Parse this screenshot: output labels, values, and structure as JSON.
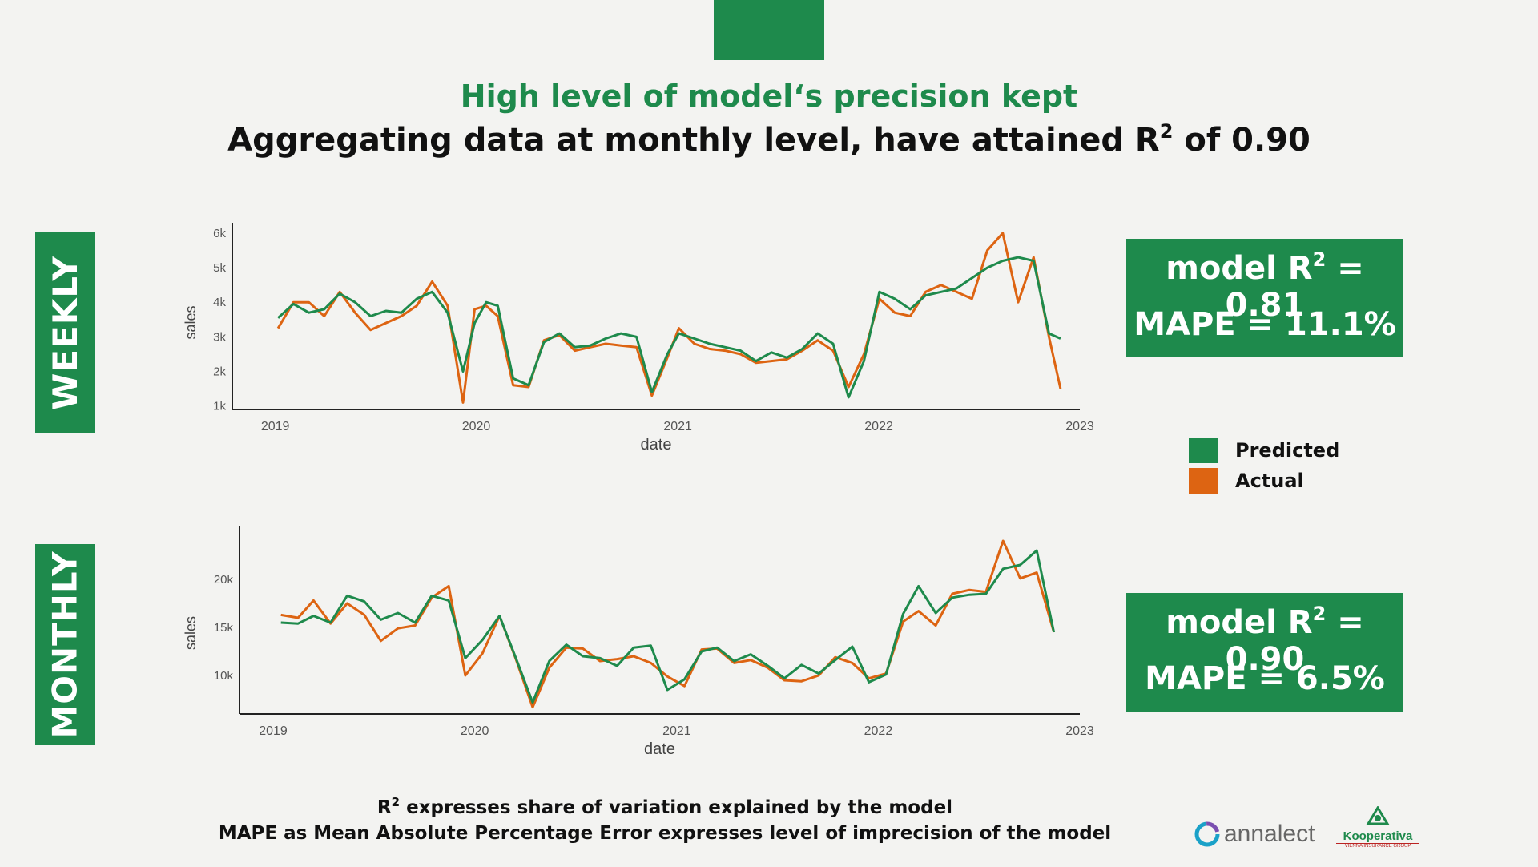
{
  "header": {
    "headline": "High level of model‘s precision kept",
    "subtitle_pre": "Aggregating data at monthly level, have attained R",
    "subtitle_sup": "2",
    "subtitle_post": " of 0.90"
  },
  "side_labels": {
    "weekly": "WEEKLY",
    "monthly": "MONTHLY"
  },
  "metrics": {
    "weekly": {
      "r2_pre": "model R",
      "r2_sup": "2",
      "r2_post": " = 0.81",
      "mape": "MAPE = 11.1%"
    },
    "monthly": {
      "r2_pre": "model R",
      "r2_sup": "2",
      "r2_post": " = 0.90",
      "mape": "MAPE = 6.5%"
    }
  },
  "legend": {
    "predicted": "Predicted",
    "actual": "Actual"
  },
  "colors": {
    "predicted": "#1e8a4c",
    "actual": "#dd6412",
    "brand_green": "#1e8a4c"
  },
  "footnotes": {
    "line1_pre": "R",
    "line1_sup": "2",
    "line1_post": " expresses share of variation explained by the model",
    "line2": "MAPE as Mean Absolute Percentage Error expresses level of imprecision of the model"
  },
  "logos": {
    "annalect": "annalect",
    "kooperativa": "Kooperativa",
    "kooperativa_sub": "VIENNA INSURANCE GROUP"
  },
  "chart_data": [
    {
      "type": "line",
      "title": "",
      "xlabel": "date",
      "ylabel": "sales",
      "xlim": [
        "2018-10-15",
        "2023-01-01"
      ],
      "ylim": [
        900,
        6300
      ],
      "x_ticks": [
        "2019",
        "2020",
        "2021",
        "2022",
        "2023"
      ],
      "y_ticks": [
        "1k",
        "2k",
        "3k",
        "4k",
        "5k",
        "6k"
      ],
      "y_tick_values": [
        1000,
        2000,
        3000,
        4000,
        5000,
        6000
      ],
      "x": [
        "2019-01-06",
        "2019-02-03",
        "2019-03-03",
        "2019-03-31",
        "2019-04-28",
        "2019-05-26",
        "2019-06-23",
        "2019-07-21",
        "2019-08-18",
        "2019-09-15",
        "2019-10-13",
        "2019-11-10",
        "2019-12-08",
        "2019-12-29",
        "2020-01-19",
        "2020-02-09",
        "2020-03-08",
        "2020-04-05",
        "2020-05-03",
        "2020-05-31",
        "2020-06-28",
        "2020-07-26",
        "2020-08-23",
        "2020-09-20",
        "2020-10-18",
        "2020-11-15",
        "2020-12-13",
        "2021-01-03",
        "2021-01-31",
        "2021-02-28",
        "2021-03-28",
        "2021-04-25",
        "2021-05-23",
        "2021-06-20",
        "2021-07-18",
        "2021-08-15",
        "2021-09-12",
        "2021-10-10",
        "2021-11-07",
        "2021-12-05",
        "2022-01-02",
        "2022-01-30",
        "2022-02-27",
        "2022-03-27",
        "2022-04-24",
        "2022-05-22",
        "2022-06-19",
        "2022-07-17",
        "2022-08-14",
        "2022-09-11",
        "2022-10-09",
        "2022-11-06",
        "2022-11-27"
      ],
      "series": [
        {
          "name": "Predicted",
          "values": [
            3550,
            3950,
            3700,
            3800,
            4250,
            4000,
            3600,
            3750,
            3700,
            4100,
            4300,
            3700,
            2000,
            3400,
            4000,
            3900,
            1800,
            1600,
            2850,
            3100,
            2700,
            2750,
            2950,
            3100,
            3000,
            1400,
            2500,
            3100,
            2950,
            2800,
            2700,
            2600,
            2300,
            2550,
            2400,
            2650,
            3100,
            2800,
            1250,
            2300,
            4300,
            4100,
            3800,
            4200,
            4300,
            4400,
            4700,
            5000,
            5200,
            5300,
            5200,
            3100,
            2950
          ]
        },
        {
          "name": "Actual",
          "values": [
            3250,
            4000,
            4000,
            3600,
            4300,
            3700,
            3200,
            3400,
            3600,
            3900,
            4600,
            3900,
            1100,
            3800,
            3900,
            3600,
            1600,
            1550,
            2900,
            3050,
            2600,
            2700,
            2800,
            2750,
            2700,
            1300,
            2400,
            3250,
            2800,
            2650,
            2600,
            2500,
            2250,
            2300,
            2350,
            2600,
            2900,
            2600,
            1550,
            2500,
            4100,
            3700,
            3600,
            4300,
            4500,
            4300,
            4100,
            5500,
            6000,
            4000,
            5300,
            3000,
            1500
          ]
        }
      ]
    },
    {
      "type": "line",
      "title": "",
      "xlabel": "date",
      "ylabel": "sales",
      "xlim": [
        "2018-11-01",
        "2023-01-01"
      ],
      "ylim": [
        6000,
        25500
      ],
      "x_ticks": [
        "2019",
        "2020",
        "2021",
        "2022",
        "2023"
      ],
      "y_ticks": [
        "10k",
        "15k",
        "20k"
      ],
      "y_tick_values": [
        10000,
        15000,
        20000
      ],
      "x": [
        "2019-01",
        "2019-02",
        "2019-03",
        "2019-04",
        "2019-05",
        "2019-06",
        "2019-07",
        "2019-08",
        "2019-09",
        "2019-10",
        "2019-11",
        "2019-12",
        "2020-01",
        "2020-02",
        "2020-03",
        "2020-04",
        "2020-05",
        "2020-06",
        "2020-07",
        "2020-08",
        "2020-09",
        "2020-10",
        "2020-11",
        "2020-12",
        "2021-01",
        "2021-02",
        "2021-03",
        "2021-04",
        "2021-05",
        "2021-06",
        "2021-07",
        "2021-08",
        "2021-09",
        "2021-10",
        "2021-11",
        "2021-12",
        "2022-01",
        "2022-02",
        "2022-03",
        "2022-04",
        "2022-05",
        "2022-06",
        "2022-07",
        "2022-08",
        "2022-09",
        "2022-10",
        "2022-11"
      ],
      "series": [
        {
          "name": "Predicted",
          "values": [
            15500,
            15400,
            16200,
            15500,
            18300,
            17700,
            15800,
            16500,
            15500,
            18300,
            17800,
            11800,
            13700,
            16200,
            11900,
            7200,
            11500,
            13200,
            12000,
            11800,
            11000,
            12900,
            13100,
            8500,
            9600,
            12500,
            12900,
            11500,
            12200,
            11000,
            9700,
            11100,
            10200,
            11600,
            13000,
            9300,
            10100,
            16400,
            19300,
            16500,
            18100,
            18400,
            18500,
            21100,
            21500,
            23000,
            14500
          ]
        },
        {
          "name": "Actual",
          "values": [
            16300,
            16000,
            17800,
            15400,
            17500,
            16300,
            13600,
            14900,
            15200,
            18100,
            19300,
            10000,
            12300,
            16200,
            11800,
            6700,
            10800,
            12900,
            12800,
            11500,
            11700,
            12000,
            11300,
            9900,
            8900,
            12700,
            12800,
            11300,
            11600,
            10800,
            9500,
            9400,
            10000,
            11900,
            11300,
            9700,
            10200,
            15600,
            16700,
            15200,
            18500,
            18900,
            18700,
            24000,
            20100,
            20700,
            14500
          ]
        }
      ]
    }
  ]
}
